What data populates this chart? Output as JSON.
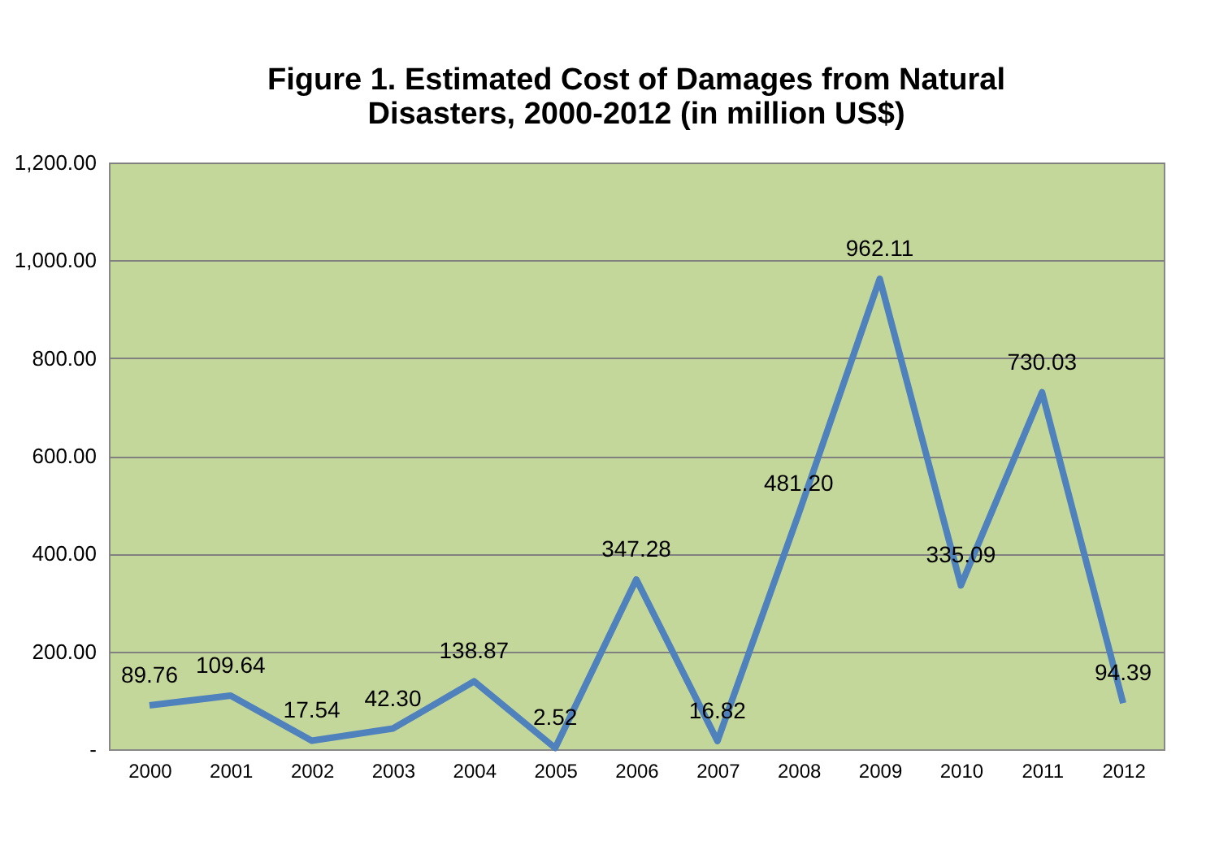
{
  "chart_data": {
    "type": "line",
    "title": "Figure 1. Estimated Cost of Damages from Natural\nDisasters, 2000-2012 (in million US$)",
    "categories": [
      "2000",
      "2001",
      "2002",
      "2003",
      "2004",
      "2005",
      "2006",
      "2007",
      "2008",
      "2009",
      "2010",
      "2011",
      "2012"
    ],
    "values": [
      89.76,
      109.64,
      17.54,
      42.3,
      138.87,
      2.52,
      347.28,
      16.82,
      481.2,
      962.11,
      335.09,
      730.03,
      94.39
    ],
    "color": "#4f81bd",
    "ylim": [
      0,
      1200
    ],
    "yticks": [
      {
        "value": 0,
        "label": "-"
      },
      {
        "value": 200,
        "label": "200.00"
      },
      {
        "value": 400,
        "label": "400.00"
      },
      {
        "value": 600,
        "label": "600.00"
      },
      {
        "value": 800,
        "label": "800.00"
      },
      {
        "value": 1000,
        "label": "1,000.00"
      },
      {
        "value": 1200,
        "label": "1,200.00"
      }
    ],
    "value_labels": [
      "89.76",
      "109.64",
      "17.54",
      "42.30",
      "138.87",
      "2.52",
      "347.28",
      "16.82",
      "481.20",
      "962.11",
      "335.09",
      "730.03",
      "94.39"
    ],
    "grid": "y",
    "marker": "none",
    "line_style": "solid"
  }
}
